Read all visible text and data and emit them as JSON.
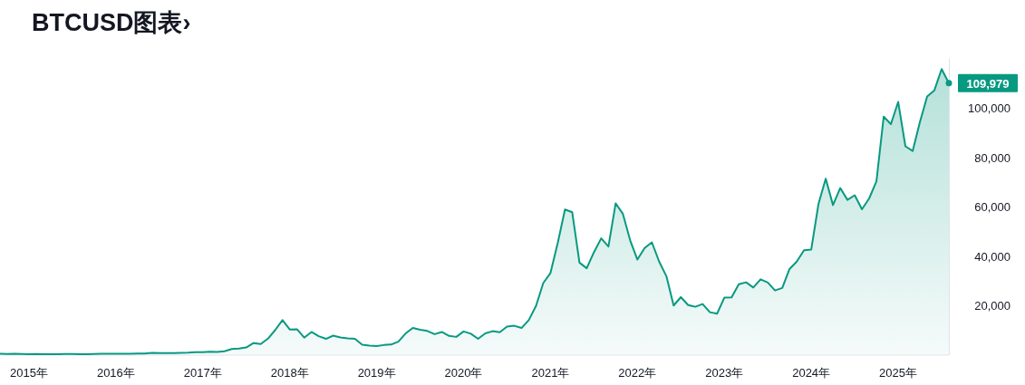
{
  "chart_data": {
    "type": "area",
    "title": "BTCUSD图表›",
    "x": [
      "2014-09",
      "2014-10",
      "2014-11",
      "2014-12",
      "2015-01",
      "2015-02",
      "2015-03",
      "2015-04",
      "2015-05",
      "2015-06",
      "2015-07",
      "2015-08",
      "2015-09",
      "2015-10",
      "2015-11",
      "2015-12",
      "2016-01",
      "2016-02",
      "2016-03",
      "2016-04",
      "2016-05",
      "2016-06",
      "2016-07",
      "2016-08",
      "2016-09",
      "2016-10",
      "2016-11",
      "2016-12",
      "2017-01",
      "2017-02",
      "2017-03",
      "2017-04",
      "2017-05",
      "2017-06",
      "2017-07",
      "2017-08",
      "2017-09",
      "2017-10",
      "2017-11",
      "2017-12",
      "2018-01",
      "2018-02",
      "2018-03",
      "2018-04",
      "2018-05",
      "2018-06",
      "2018-07",
      "2018-08",
      "2018-09",
      "2018-10",
      "2018-11",
      "2018-12",
      "2019-01",
      "2019-02",
      "2019-03",
      "2019-04",
      "2019-05",
      "2019-06",
      "2019-07",
      "2019-08",
      "2019-09",
      "2019-10",
      "2019-11",
      "2019-12",
      "2020-01",
      "2020-02",
      "2020-03",
      "2020-04",
      "2020-05",
      "2020-06",
      "2020-07",
      "2020-08",
      "2020-09",
      "2020-10",
      "2020-11",
      "2020-12",
      "2021-01",
      "2021-02",
      "2021-03",
      "2021-04",
      "2021-05",
      "2021-06",
      "2021-07",
      "2021-08",
      "2021-09",
      "2021-10",
      "2021-11",
      "2021-12",
      "2022-01",
      "2022-02",
      "2022-03",
      "2022-04",
      "2022-05",
      "2022-06",
      "2022-07",
      "2022-08",
      "2022-09",
      "2022-10",
      "2022-11",
      "2022-12",
      "2023-01",
      "2023-02",
      "2023-03",
      "2023-04",
      "2023-05",
      "2023-06",
      "2023-07",
      "2023-08",
      "2023-09",
      "2023-10",
      "2023-11",
      "2023-12",
      "2024-01",
      "2024-02",
      "2024-03",
      "2024-04",
      "2024-05",
      "2024-06",
      "2024-07",
      "2024-08",
      "2024-09",
      "2024-10",
      "2024-11",
      "2024-12",
      "2025-01",
      "2025-02",
      "2025-03",
      "2025-04",
      "2025-05",
      "2025-06",
      "2025-07",
      "2025-08"
    ],
    "series": [
      {
        "color": "#089981",
        "values": [
          400,
          300,
          400,
          300,
          200,
          300,
          200,
          200,
          200,
          300,
          300,
          200,
          200,
          300,
          400,
          400,
          400,
          400,
          400,
          500,
          500,
          700,
          600,
          600,
          600,
          700,
          800,
          1000,
          1000,
          1200,
          1100,
          1400,
          2300,
          2500,
          2900,
          4700,
          4300,
          6500,
          10000,
          14000,
          10200,
          10300,
          6900,
          9200,
          7500,
          6400,
          7700,
          7000,
          6600,
          6400,
          4000,
          3700,
          3500,
          3900,
          4100,
          5300,
          8600,
          10800,
          10100,
          9600,
          8300,
          9200,
          7600,
          7200,
          9400,
          8500,
          6400,
          8600,
          9500,
          9100,
          11400,
          11700,
          10800,
          14000,
          19700,
          29000,
          33100,
          45200,
          58800,
          57700,
          37300,
          35000,
          41500,
          47100,
          43800,
          61300,
          57000,
          46300,
          38500,
          43200,
          45500,
          37700,
          31800,
          19900,
          23300,
          20100,
          19400,
          20500,
          17200,
          16600,
          23100,
          23200,
          28500,
          29300,
          27200,
          30500,
          29200,
          26000,
          27000,
          34700,
          37700,
          42300,
          42600,
          61100,
          71300,
          60600,
          67500,
          62700,
          64600,
          58900,
          63300,
          70200,
          96400,
          93400,
          102400,
          84400,
          82500,
          94200,
          104600,
          107100,
          115700,
          109979
        ]
      }
    ],
    "ylim": [
      0,
      120000
    ],
    "xlim": [
      "2014-09",
      "2025-08"
    ],
    "yticks": [
      {
        "value": 20000,
        "label": "20,000"
      },
      {
        "value": 40000,
        "label": "40,000"
      },
      {
        "value": 60000,
        "label": "60,000"
      },
      {
        "value": 80000,
        "label": "80,000"
      },
      {
        "value": 100000,
        "label": "100,000"
      }
    ],
    "xticks": [
      {
        "value": "2015-01",
        "label": "2015年"
      },
      {
        "value": "2016-01",
        "label": "2016年"
      },
      {
        "value": "2017-01",
        "label": "2017年"
      },
      {
        "value": "2018-01",
        "label": "2018年"
      },
      {
        "value": "2019-01",
        "label": "2019年"
      },
      {
        "value": "2020-01",
        "label": "2020年"
      },
      {
        "value": "2021-01",
        "label": "2021年"
      },
      {
        "value": "2022-01",
        "label": "2022年"
      },
      {
        "value": "2023-01",
        "label": "2023年"
      },
      {
        "value": "2024-01",
        "label": "2024年"
      },
      {
        "value": "2025-01",
        "label": "2025年"
      }
    ],
    "annotations": [
      {
        "text": "109,979",
        "x": "2025-08",
        "y": 109979
      }
    ]
  }
}
